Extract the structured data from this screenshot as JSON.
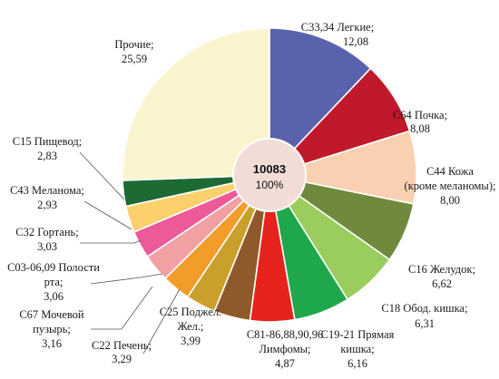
{
  "chart_data": {
    "type": "pie",
    "variant": "donut-center-label",
    "center": {
      "total": "10083",
      "percent": "100%"
    },
    "slices": [
      {
        "code": "C33,34 Легкие;",
        "value": 12.08,
        "value_label": "12,08",
        "color": "#5b62ad"
      },
      {
        "code": "C64 Почка;",
        "value": 8.08,
        "value_label": "8,08",
        "color": "#c0192b"
      },
      {
        "code": "C44 Кожа (кроме меланомы);",
        "value": 8.0,
        "value_label": "8,00",
        "color": "#f9d1b2"
      },
      {
        "code": "C16 Желудок;",
        "value": 6.62,
        "value_label": "6,62",
        "color": "#6f8a3c"
      },
      {
        "code": "C18 Обод. кишка;",
        "value": 6.31,
        "value_label": "6,31",
        "color": "#9acd5d"
      },
      {
        "code": "C19-21 Прямая кишка;",
        "value": 6.16,
        "value_label": "6,16",
        "color": "#1ea84b"
      },
      {
        "code": "C81-86,88,90,96 Лимфомы;",
        "value": 4.87,
        "value_label": "4,87",
        "color": "#e6231d"
      },
      {
        "code": "C25 Поджел. Жел.;",
        "value": 3.99,
        "value_label": "3,99",
        "color": "#8e5a2b"
      },
      {
        "code": "C22 Печень;",
        "value": 3.29,
        "value_label": "3,29",
        "color": "#caa02d"
      },
      {
        "code": "C67 Мочевой пузырь;",
        "value": 3.16,
        "value_label": "3,16",
        "color": "#f29d2a"
      },
      {
        "code": "C03-06,09 Полости рта;",
        "value": 3.06,
        "value_label": "3,06",
        "color": "#f2a0a4"
      },
      {
        "code": "C32 Гортань;",
        "value": 3.03,
        "value_label": "3,03",
        "color": "#ec5a9a"
      },
      {
        "code": "C43 Меланома;",
        "value": 2.93,
        "value_label": "2,93",
        "color": "#fbd06d"
      },
      {
        "code": "C15 Пищевод;",
        "value": 2.83,
        "value_label": "2,83",
        "color": "#1d6a34"
      },
      {
        "code": "Прочие;",
        "value": 25.59,
        "value_label": "25,59",
        "color": "#fbf5cf"
      }
    ]
  }
}
